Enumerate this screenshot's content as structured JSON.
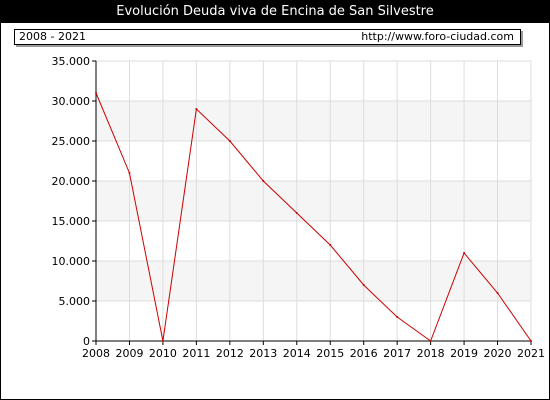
{
  "title": "Evolución Deuda viva de Encina de San Silvestre",
  "range_label": "2008 - 2021",
  "source_url": "http://www.foro-ciudad.com",
  "colors": {
    "line": "#cc0000",
    "band": "#f5f5f5",
    "grid": "#dddddd"
  },
  "chart_data": {
    "type": "line",
    "title": "Evolución Deuda viva de Encina de San Silvestre",
    "xlabel": "",
    "ylabel": "",
    "grid": true,
    "ylim": [
      0,
      35000
    ],
    "yticks": [
      0,
      5000,
      10000,
      15000,
      20000,
      25000,
      30000,
      35000
    ],
    "ytick_labels": [
      "0",
      "5.000",
      "10.000",
      "15.000",
      "20.000",
      "25.000",
      "30.000",
      "35.000"
    ],
    "x": [
      "2008",
      "2009",
      "2010",
      "2011",
      "2012",
      "2013",
      "2014",
      "2015",
      "2016",
      "2017",
      "2018",
      "2019",
      "2020",
      "2021"
    ],
    "series": [
      {
        "values": [
          31000,
          21000,
          0,
          29000,
          25000,
          20000,
          16000,
          12000,
          7000,
          3000,
          0,
          11000,
          6000,
          0
        ]
      }
    ]
  }
}
